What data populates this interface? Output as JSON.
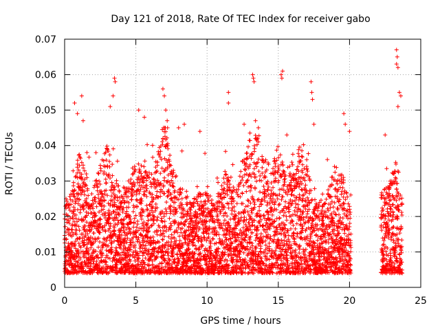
{
  "chart_data": {
    "type": "scatter",
    "title": "Day 121 of 2018, Rate Of TEC Index for receiver gabo",
    "xlabel": "GPS time / hours",
    "ylabel": "ROTI / TECUs",
    "xlim": [
      0,
      25
    ],
    "ylim": [
      0,
      0.07
    ],
    "x_ticks": [
      0,
      5,
      10,
      15,
      20,
      25
    ],
    "x_tick_labels": [
      "0",
      "5",
      "10",
      "15",
      "20",
      "25"
    ],
    "y_ticks": [
      0,
      0.01,
      0.02,
      0.03,
      0.04,
      0.05,
      0.06,
      0.07
    ],
    "y_tick_labels": [
      "0",
      "0.01",
      "0.02",
      "0.03",
      "0.04",
      "0.05",
      "0.06",
      "0.07"
    ],
    "grid": true,
    "marker": "+",
    "series_color": "#ff0000",
    "data_gap_hours": [
      20.1,
      22.2
    ],
    "envelope": {
      "hours": [
        0,
        0.5,
        1,
        1.5,
        2,
        2.5,
        3,
        3.5,
        4,
        4.5,
        5,
        5.5,
        6,
        6.5,
        7,
        7.5,
        8,
        8.5,
        9,
        9.5,
        10,
        10.5,
        11,
        11.5,
        12,
        12.5,
        13,
        13.5,
        14,
        14.5,
        15,
        15.5,
        16,
        16.5,
        17,
        17.5,
        18,
        18.5,
        19,
        19.5,
        20,
        22.3,
        22.8,
        23.3,
        23.7
      ],
      "typical_roti": [
        0.01,
        0.012,
        0.018,
        0.015,
        0.013,
        0.016,
        0.019,
        0.015,
        0.013,
        0.014,
        0.017,
        0.016,
        0.015,
        0.017,
        0.024,
        0.016,
        0.014,
        0.012,
        0.011,
        0.012,
        0.012,
        0.011,
        0.013,
        0.016,
        0.012,
        0.017,
        0.02,
        0.021,
        0.018,
        0.016,
        0.019,
        0.015,
        0.018,
        0.019,
        0.017,
        0.01,
        0.011,
        0.013,
        0.016,
        0.015,
        0.01,
        0.012,
        0.014,
        0.017,
        0.012
      ]
    },
    "peaks": [
      {
        "x": 0.1,
        "y": 0.025
      },
      {
        "x": 0.7,
        "y": 0.052
      },
      {
        "x": 0.9,
        "y": 0.049
      },
      {
        "x": 1.2,
        "y": 0.054
      },
      {
        "x": 1.3,
        "y": 0.047
      },
      {
        "x": 2.2,
        "y": 0.038
      },
      {
        "x": 3.2,
        "y": 0.051
      },
      {
        "x": 3.5,
        "y": 0.059
      },
      {
        "x": 3.55,
        "y": 0.058
      },
      {
        "x": 3.4,
        "y": 0.054
      },
      {
        "x": 5.2,
        "y": 0.05
      },
      {
        "x": 5.6,
        "y": 0.048
      },
      {
        "x": 6.9,
        "y": 0.056
      },
      {
        "x": 7.0,
        "y": 0.054
      },
      {
        "x": 7.1,
        "y": 0.05
      },
      {
        "x": 7.2,
        "y": 0.047
      },
      {
        "x": 8.0,
        "y": 0.045
      },
      {
        "x": 8.4,
        "y": 0.046
      },
      {
        "x": 9.5,
        "y": 0.044
      },
      {
        "x": 11.5,
        "y": 0.055
      },
      {
        "x": 11.5,
        "y": 0.052
      },
      {
        "x": 12.6,
        "y": 0.046
      },
      {
        "x": 13.2,
        "y": 0.06
      },
      {
        "x": 13.25,
        "y": 0.059
      },
      {
        "x": 13.3,
        "y": 0.058
      },
      {
        "x": 13.4,
        "y": 0.047
      },
      {
        "x": 15.2,
        "y": 0.06
      },
      {
        "x": 15.3,
        "y": 0.061
      },
      {
        "x": 15.25,
        "y": 0.059
      },
      {
        "x": 15.6,
        "y": 0.043
      },
      {
        "x": 17.3,
        "y": 0.058
      },
      {
        "x": 17.35,
        "y": 0.055
      },
      {
        "x": 17.4,
        "y": 0.053
      },
      {
        "x": 17.5,
        "y": 0.046
      },
      {
        "x": 19.6,
        "y": 0.049
      },
      {
        "x": 19.7,
        "y": 0.046
      },
      {
        "x": 20.0,
        "y": 0.044
      },
      {
        "x": 22.5,
        "y": 0.043
      },
      {
        "x": 23.3,
        "y": 0.067
      },
      {
        "x": 23.35,
        "y": 0.065
      },
      {
        "x": 23.3,
        "y": 0.063
      },
      {
        "x": 23.4,
        "y": 0.062
      },
      {
        "x": 23.5,
        "y": 0.055
      },
      {
        "x": 23.6,
        "y": 0.054
      },
      {
        "x": 23.4,
        "y": 0.051
      }
    ]
  }
}
